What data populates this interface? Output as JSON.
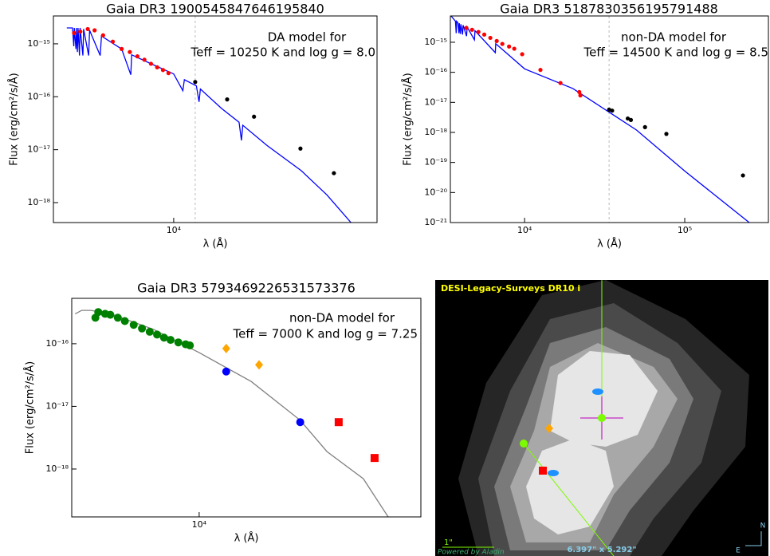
{
  "chart_data": [
    {
      "type": "scatter",
      "title": "Gaia DR3 1900545847646195840",
      "x_label": "λ (Å)",
      "y_label": "Flux (erg/cm²/s/Å)",
      "annotations": [
        "DA model for",
        "Teff = 10250 K and log g = 8.0"
      ],
      "xscale": "log",
      "yscale": "log",
      "xlim": [
        3070,
        73600
      ],
      "ylim": [
        4.2e-19,
        3.36e-15
      ],
      "xticks": [
        {
          "value": 10000,
          "label": "10⁴"
        }
      ],
      "yticks": [
        {
          "value": 1e-15,
          "label": "10⁻¹⁵"
        },
        {
          "value": 1e-16,
          "label": "10⁻¹⁶"
        },
        {
          "value": 1e-17,
          "label": "10⁻¹⁷"
        },
        {
          "value": 1e-18,
          "label": "10⁻¹⁸"
        }
      ],
      "vline": 12350,
      "series": [
        {
          "mode": "line",
          "color": "#0000ff",
          "x": [
            3500,
            3700,
            3750,
            3770,
            3830,
            3850,
            3885,
            3910,
            3965,
            3990,
            4100,
            4130,
            4340,
            4380,
            4861,
            4920,
            6000,
            6563,
            6620,
            8000,
            10000,
            10940,
            11100,
            12500,
            12820,
            13000,
            16000,
            19000,
            19450,
            19700,
            25000,
            35000,
            45000,
            57000
          ],
          "values": [
            2e-15,
            2e-15,
            9e-16,
            2e-15,
            8e-16,
            2e-15,
            7e-16,
            2e-15,
            6e-16,
            2e-15,
            6e-16,
            1.9e-15,
            6e-16,
            1.8e-15,
            6e-16,
            1.4e-15,
            8e-16,
            2.6e-16,
            6.2e-16,
            4.2e-16,
            2.7e-16,
            1.3e-16,
            2.1e-16,
            1.6e-16,
            8e-17,
            1.4e-16,
            6e-17,
            3.3e-17,
            1.5e-17,
            2.9e-17,
            1.2e-17,
            4e-18,
            1.4e-18,
            4.2e-19
          ]
        },
        {
          "mode": "markers",
          "marker": "circle",
          "color": "#ff0000",
          "x": [
            3760,
            4000,
            4300,
            4600,
            5000,
            5500,
            6000,
            6500,
            7000,
            7500,
            8000,
            8500,
            9000,
            9500
          ],
          "values": [
            1.6e-15,
            1.7e-15,
            1.9e-15,
            1.8e-15,
            1.45e-15,
            1.1e-15,
            8e-16,
            7e-16,
            5.8e-16,
            5e-16,
            4.2e-16,
            3.6e-16,
            3.2e-16,
            2.8e-16
          ]
        },
        {
          "mode": "markers",
          "marker": "circle",
          "color": "#000000",
          "x": [
            12350,
            16900,
            22000,
            34700,
            48200
          ],
          "values": [
            1.9e-16,
            8.9e-17,
            4.2e-17,
            1.05e-17,
            3.6e-18
          ]
        }
      ]
    },
    {
      "type": "scatter",
      "title": "Gaia DR3 5187830356195791488",
      "x_label": "λ (Å)",
      "y_label": "Flux (erg/cm²/s/Å)",
      "annotations": [
        "non-DA model for",
        "Teff = 14500 K and log g = 8.5"
      ],
      "xscale": "log",
      "yscale": "log",
      "xlim": [
        3440,
        333000
      ],
      "ylim": [
        1e-21,
        7.5e-15
      ],
      "xticks": [
        {
          "value": 10000,
          "label": "10⁴"
        },
        {
          "value": 100000,
          "label": "10⁵"
        }
      ],
      "yticks": [
        {
          "value": 1e-15,
          "label": "10⁻¹⁵"
        },
        {
          "value": 1e-16,
          "label": "10⁻¹⁶"
        },
        {
          "value": 1e-17,
          "label": "10⁻¹⁷"
        },
        {
          "value": 1e-18,
          "label": "10⁻¹⁸"
        },
        {
          "value": 1e-19,
          "label": "10⁻¹⁹"
        },
        {
          "value": 1e-20,
          "label": "10⁻²⁰"
        },
        {
          "value": 1e-21,
          "label": "10⁻²¹"
        }
      ],
      "vline": 33700,
      "series": [
        {
          "mode": "line",
          "color": "#0000ff",
          "x": [
            3440,
            3700,
            3740,
            3760,
            3830,
            3890,
            3910,
            3970,
            4000,
            4100,
            4130,
            4340,
            4380,
            4861,
            4900,
            6563,
            6600,
            10000,
            20000,
            50000,
            100000,
            253000
          ],
          "values": [
            8e-15,
            5e-15,
            2e-15,
            5e-15,
            4.5e-15,
            2e-15,
            4.3e-15,
            1.9e-15,
            4e-15,
            1.8e-15,
            3.7e-15,
            1.6e-15,
            3.2e-15,
            1.2e-15,
            2.4e-15,
            4.5e-16,
            9e-16,
            1.3e-16,
            2.9e-17,
            1.2e-18,
            5.2e-20,
            1e-21
          ]
        },
        {
          "mode": "markers",
          "marker": "circle",
          "color": "#ff0000",
          "x": [
            4330,
            4700,
            5150,
            5600,
            6110,
            6700,
            7260,
            8000,
            8620,
            9660,
            12560,
            16750,
            21960,
            22300
          ],
          "values": [
            3e-15,
            2.6e-15,
            2.2e-15,
            1.8e-15,
            1.4e-15,
            1.1e-15,
            8.8e-16,
            7.2e-16,
            6.1e-16,
            4e-16,
            1.2e-16,
            4.4e-17,
            2.2e-17,
            1.7e-17
          ]
        },
        {
          "mode": "markers",
          "marker": "circle",
          "color": "#000000",
          "x": [
            33700,
            35200,
            44100,
            46100,
            56500,
            76800,
            231000
          ],
          "values": [
            5.7e-18,
            5.3e-18,
            2.9e-18,
            2.6e-18,
            1.5e-18,
            8.9e-19,
            3.7e-20
          ]
        }
      ]
    },
    {
      "type": "scatter",
      "title": "Gaia DR3 5793469226531573376",
      "x_label": "λ (Å)",
      "y_label": "Flux (erg/cm²/s/Å)",
      "annotations": [
        "non-DA model for",
        "Teff = 7000 K and log g = 7.25"
      ],
      "xscale": "log",
      "yscale": "log",
      "xlim": [
        3700,
        56400
      ],
      "ylim": [
        1.72e-19,
        5.3e-16
      ],
      "xticks": [
        {
          "value": 10000,
          "label": "10⁴"
        }
      ],
      "yticks": [
        {
          "value": 1e-16,
          "label": "10⁻¹⁶"
        },
        {
          "value": 1e-17,
          "label": "10⁻¹⁷"
        },
        {
          "value": 1e-18,
          "label": "10⁻¹⁸"
        }
      ],
      "series": [
        {
          "mode": "line",
          "color": "#808080",
          "x": [
            3800,
            4000,
            4300,
            5000,
            7000,
            10000,
            15000,
            22000,
            27100,
            36000,
            43700
          ],
          "values": [
            3e-16,
            3.4e-16,
            3.4e-16,
            3e-16,
            1.7e-16,
            7.2e-17,
            2.5e-17,
            6e-18,
            1.9e-18,
            7e-19,
            1.72e-19
          ]
        },
        {
          "mode": "markers",
          "marker": "circle",
          "color": "#008000",
          "x": [
            4450,
            4550,
            4800,
            5000,
            5300,
            5600,
            6000,
            6400,
            6800,
            7200,
            7600,
            8000,
            8500,
            9000,
            9300
          ],
          "values": [
            2.6e-16,
            3.2e-16,
            3e-16,
            2.9e-16,
            2.6e-16,
            2.3e-16,
            2e-16,
            1.75e-16,
            1.55e-16,
            1.4e-16,
            1.25e-16,
            1.15e-16,
            1.05e-16,
            9.8e-17,
            9.4e-17
          ]
        },
        {
          "mode": "markers",
          "marker": "diamond",
          "color": "#ffa500",
          "x": [
            12350,
            15960
          ],
          "values": [
            8.4e-17,
            4.6e-17
          ]
        },
        {
          "mode": "markers",
          "marker": "circle",
          "color": "#0000ff",
          "x": [
            12350,
            22000
          ],
          "values": [
            3.6e-17,
            5.6e-18
          ]
        },
        {
          "mode": "markers",
          "marker": "square",
          "color": "#ff0000",
          "x": [
            29700,
            39300
          ],
          "values": [
            5.6e-18,
            1.5e-18
          ]
        }
      ]
    }
  ],
  "image_panel": {
    "title": "DESI-Legacy-Surveys DR10 i",
    "scale_label": "1\"",
    "field_of_view": "6.397\" x 5.292\"",
    "credit": "Powered by Aladin",
    "north": "N",
    "east": "E"
  }
}
